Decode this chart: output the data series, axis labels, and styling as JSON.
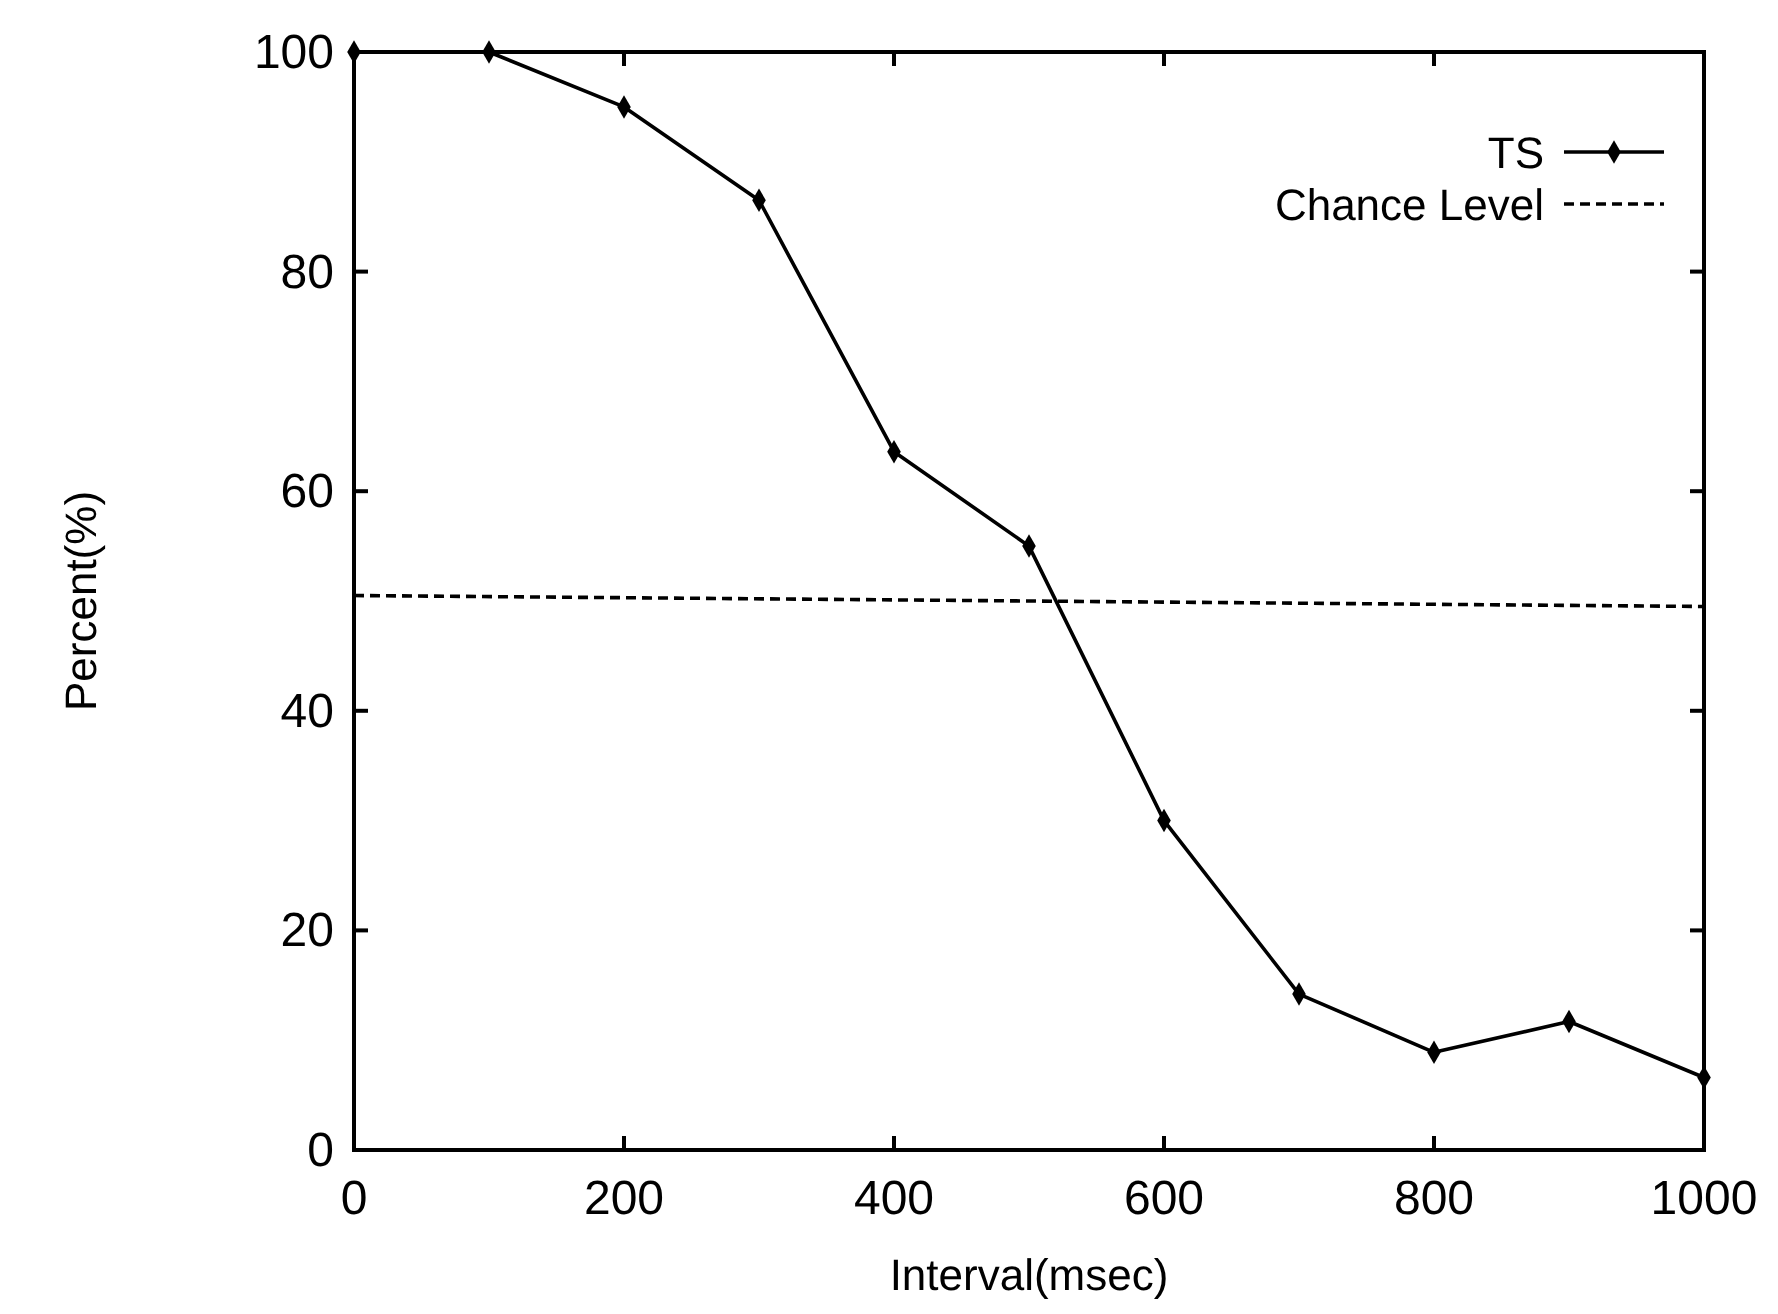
{
  "chart_data": {
    "type": "line",
    "xlabel": "Interval(msec)",
    "ylabel": "Percent(%)",
    "x": [
      0,
      100,
      200,
      300,
      400,
      500,
      600,
      700,
      800,
      900,
      1000
    ],
    "series": [
      {
        "name": "TS",
        "color": "#000000",
        "marker": "diamond",
        "line_style": "solid",
        "values": [
          100,
          100,
          95,
          86.5,
          63.6,
          55,
          30,
          14.2,
          8.9,
          11.7,
          6.6
        ]
      },
      {
        "name": "Chance Level",
        "color": "#000000",
        "marker": "none",
        "line_style": "dashed",
        "x": [
          0,
          1000
        ],
        "values": [
          50.5,
          49.5
        ]
      }
    ],
    "xlim": [
      0,
      1000
    ],
    "xticks": [
      0,
      200,
      400,
      600,
      800,
      1000
    ],
    "ylim": [
      0,
      100
    ],
    "yticks": [
      0,
      20,
      40,
      60,
      80,
      100
    ],
    "grid": false,
    "legend": "top right"
  }
}
